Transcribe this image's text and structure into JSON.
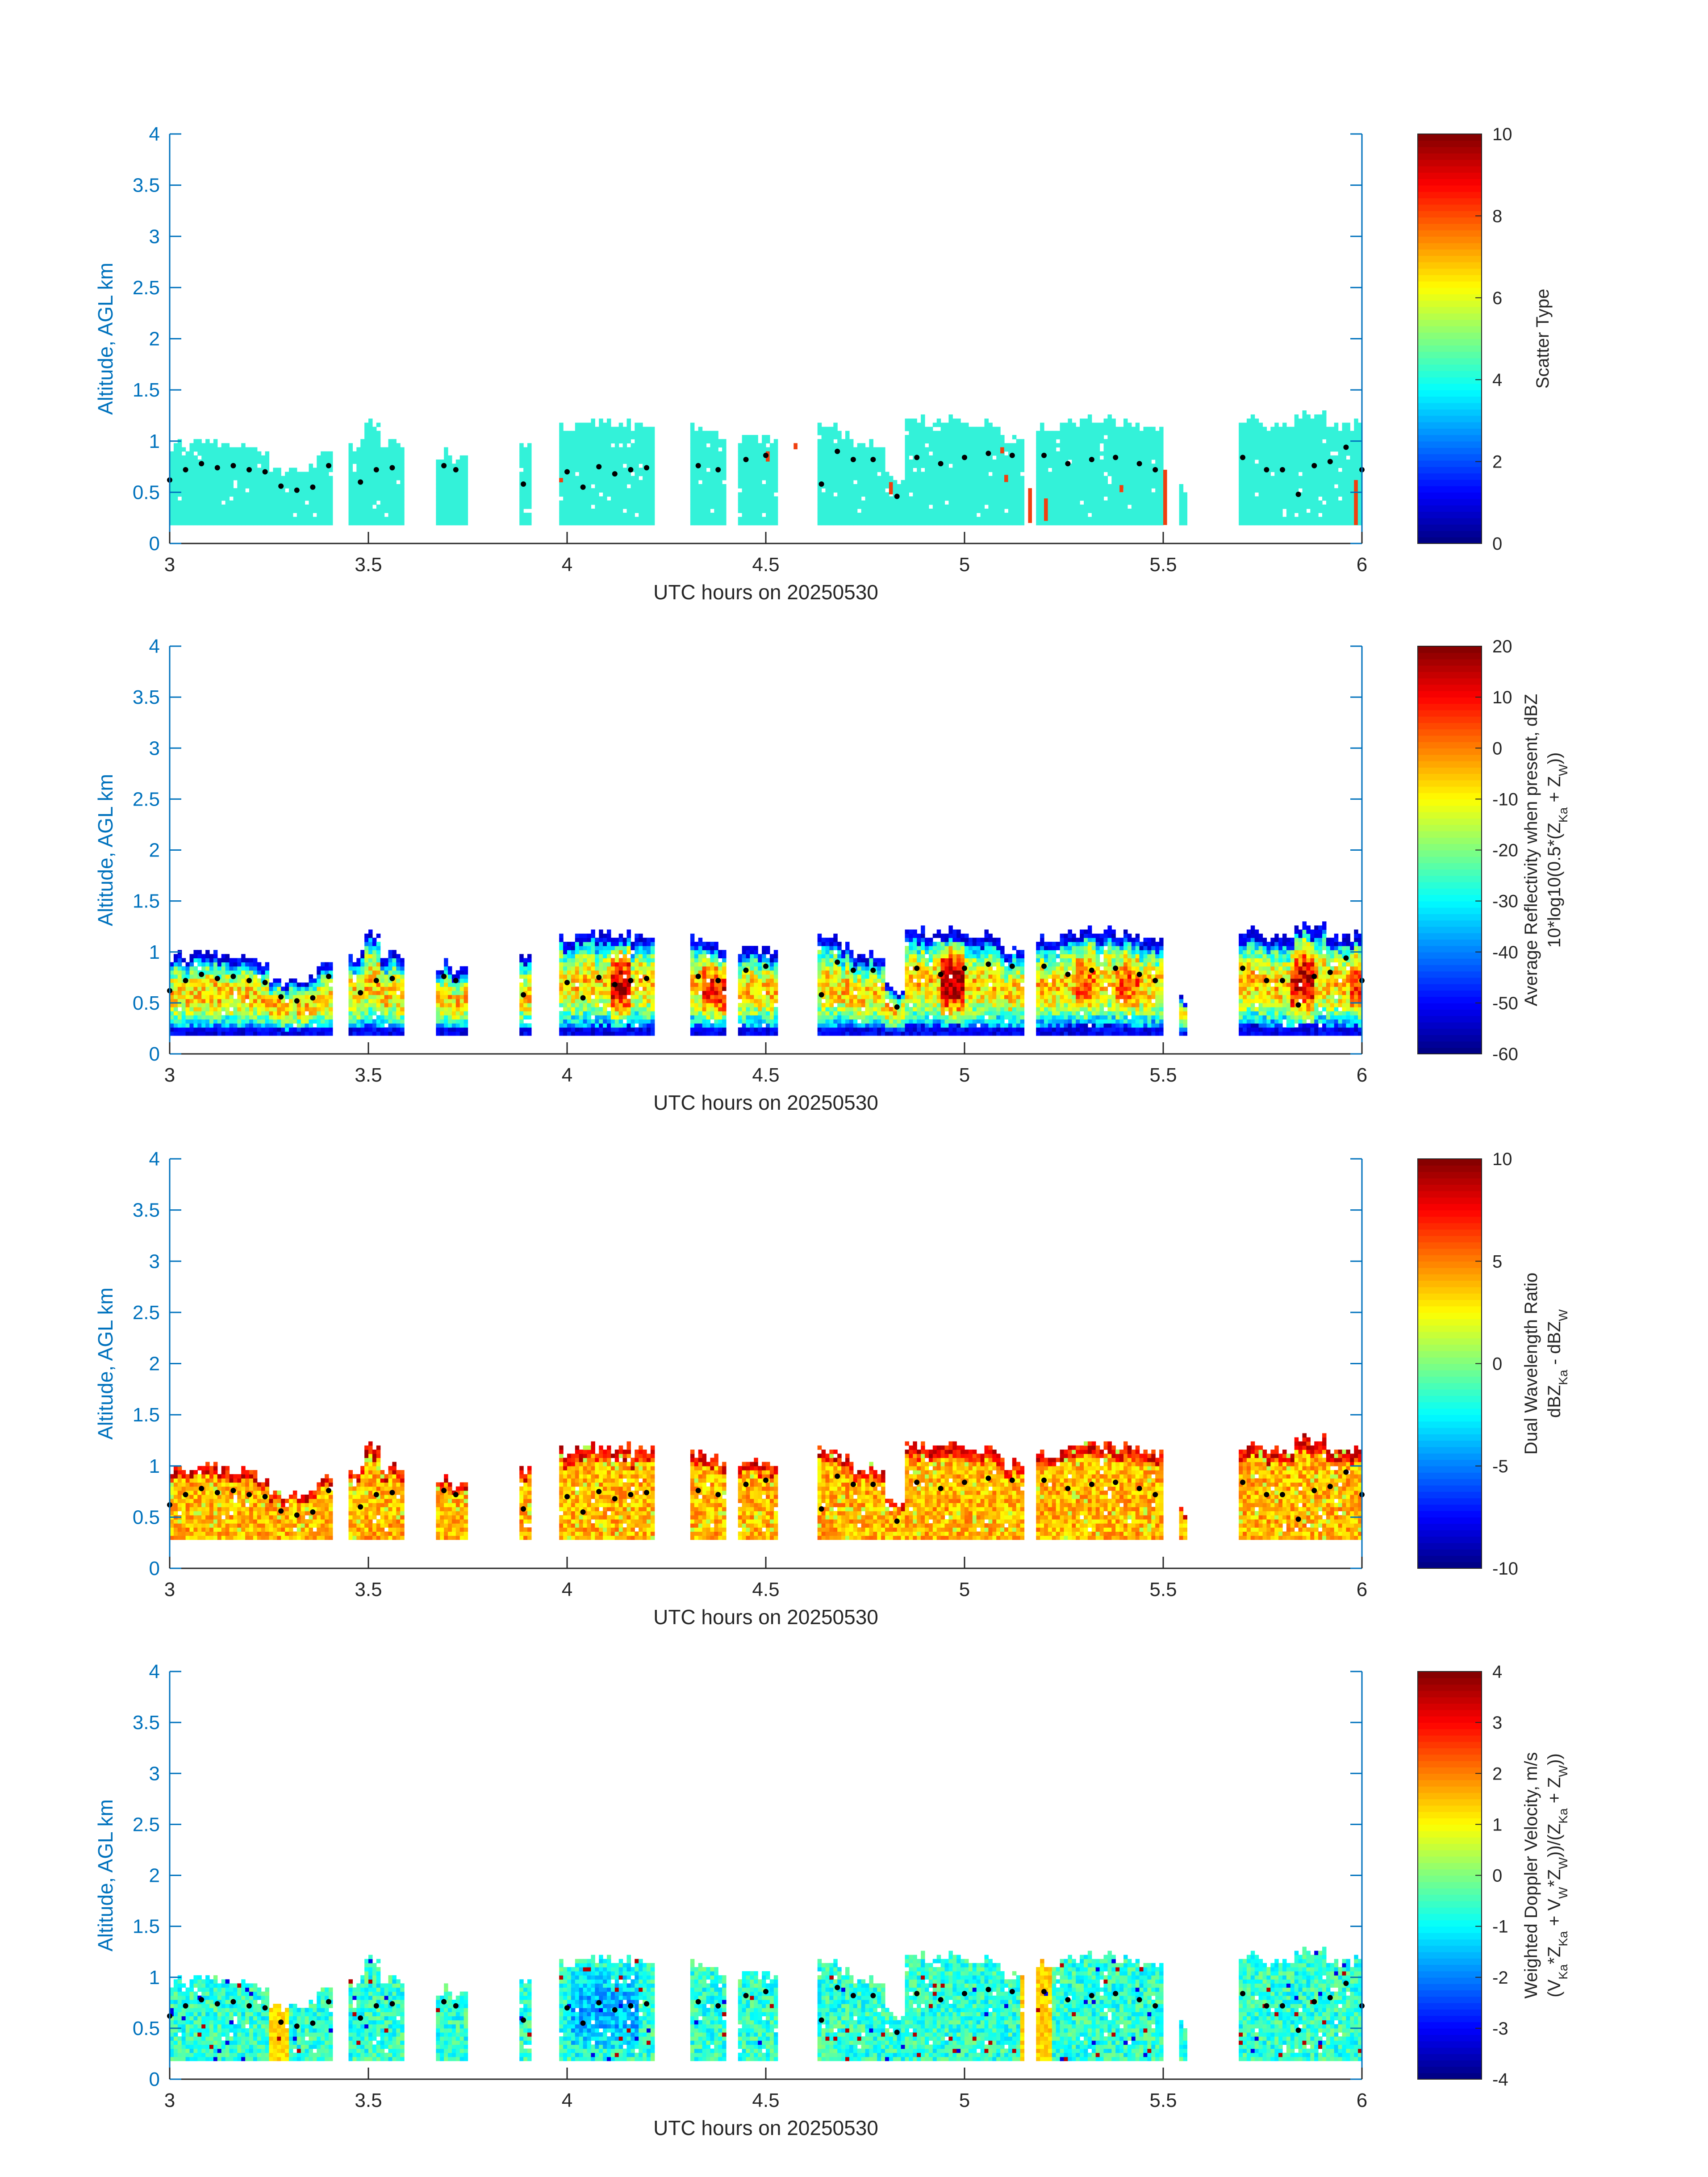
{
  "colors": {
    "axis": "#0072bd",
    "text": "#262626",
    "cloud_cyan": "#33f2d9",
    "anomaly_red": "#f04010",
    "marker": "#000000"
  },
  "colormap": "jet",
  "chart_data": [
    {
      "id": "scatter",
      "type": "heatmap",
      "title": "",
      "xlabel": "UTC hours on 20250530",
      "ylabel": "Altitude, AGL km",
      "xlim": [
        3,
        6
      ],
      "ylim": [
        0,
        4
      ],
      "xticks": [
        "3",
        "3.5",
        "4",
        "4.5",
        "5",
        "5.5",
        "6"
      ],
      "yticks": [
        "0",
        "0.5",
        "1",
        "1.5",
        "2",
        "2.5",
        "3",
        "3.5",
        "4"
      ],
      "colorbar": {
        "label_lines": [
          "Scatter Type"
        ],
        "range": [
          0,
          10
        ],
        "ticks": [
          "0",
          "2",
          "4",
          "6",
          "8",
          "10"
        ]
      }
    },
    {
      "id": "reflectivity",
      "type": "heatmap",
      "title": "",
      "xlabel": "UTC hours on 20250530",
      "ylabel": "Altitude, AGL km",
      "xlim": [
        3,
        6
      ],
      "ylim": [
        0,
        4
      ],
      "xticks": [
        "3",
        "3.5",
        "4",
        "4.5",
        "5",
        "5.5",
        "6"
      ],
      "yticks": [
        "0",
        "0.5",
        "1",
        "1.5",
        "2",
        "2.5",
        "3",
        "3.5",
        "4"
      ],
      "colorbar": {
        "label_lines": [
          "Average Reflectivity when present, dBZ",
          "10*log10(0.5*(Z_Ka + Z_W))"
        ],
        "range": [
          -60,
          20
        ],
        "ticks": [
          "-60",
          "-50",
          "-40",
          "-30",
          "-20",
          "-10",
          "0",
          "10",
          "20"
        ]
      }
    },
    {
      "id": "dwr",
      "type": "heatmap",
      "title": "",
      "xlabel": "UTC hours on 20250530",
      "ylabel": "Altitude, AGL km",
      "xlim": [
        3,
        6
      ],
      "ylim": [
        0,
        4
      ],
      "xticks": [
        "3",
        "3.5",
        "4",
        "4.5",
        "5",
        "5.5",
        "6"
      ],
      "yticks": [
        "0",
        "0.5",
        "1",
        "1.5",
        "2",
        "2.5",
        "3",
        "3.5",
        "4"
      ],
      "colorbar": {
        "label_lines": [
          "Dual Wavelength Ratio",
          "dBZ_Ka - dBZ_W"
        ],
        "range": [
          -10,
          10
        ],
        "ticks": [
          "-10",
          "-5",
          "0",
          "5",
          "10"
        ]
      }
    },
    {
      "id": "velocity",
      "type": "heatmap",
      "title": "",
      "xlabel": "UTC hours on 20250530",
      "ylabel": "Altitude, AGL km",
      "xlim": [
        3,
        6
      ],
      "ylim": [
        0,
        4
      ],
      "xticks": [
        "3",
        "3.5",
        "4",
        "4.5",
        "5",
        "5.5",
        "6"
      ],
      "yticks": [
        "0",
        "0.5",
        "1",
        "1.5",
        "2",
        "2.5",
        "3",
        "3.5",
        "4"
      ],
      "colorbar": {
        "label_lines": [
          "Weighted Doppler Velocity, m/s",
          "(V_Ka*Z_Ka + V_W*Z_W))/(Z_Ka + Z_W))"
        ],
        "range": [
          -4,
          4
        ],
        "ticks": [
          "-4",
          "-3",
          "-2",
          "-1",
          "0",
          "1",
          "2",
          "3",
          "4"
        ]
      }
    }
  ],
  "cloud_data": {
    "time_step_h": 0.01,
    "height_step_km": 0.04,
    "base_km": 0.18,
    "segments": [
      {
        "t": [
          3.0,
          3.06
        ],
        "top": 0.95
      },
      {
        "t": [
          3.06,
          3.14
        ],
        "top": 0.95
      },
      {
        "t": [
          3.14,
          3.2
        ],
        "top": 0.92
      },
      {
        "t": [
          3.2,
          3.25
        ],
        "top": 0.88
      },
      {
        "t": [
          3.25,
          3.31
        ],
        "top": 0.68
      },
      {
        "t": [
          3.31,
          3.37
        ],
        "top": 0.72
      },
      {
        "t": [
          3.37,
          3.41
        ],
        "top": 0.88
      },
      {
        "t": [
          3.45,
          3.49
        ],
        "top": 0.95
      },
      {
        "t": [
          3.49,
          3.53
        ],
        "top": 1.18
      },
      {
        "t": [
          3.53,
          3.59
        ],
        "top": 0.95
      },
      {
        "t": [
          3.67,
          3.71
        ],
        "top": 0.85
      },
      {
        "t": [
          3.71,
          3.75
        ],
        "top": 0.78
      },
      {
        "t": [
          3.88,
          3.91
        ],
        "top": 0.95
      },
      {
        "t": [
          3.98,
          4.03
        ],
        "top": 1.12
      },
      {
        "t": [
          4.03,
          4.11
        ],
        "top": 1.16
      },
      {
        "t": [
          4.11,
          4.16
        ],
        "top": 1.16
      },
      {
        "t": [
          4.16,
          4.22
        ],
        "top": 1.12
      },
      {
        "t": [
          4.31,
          4.35
        ],
        "top": 1.12
      },
      {
        "t": [
          4.35,
          4.4
        ],
        "top": 1.06
      },
      {
        "t": [
          4.43,
          4.48
        ],
        "top": 1.02
      },
      {
        "t": [
          4.48,
          4.53
        ],
        "top": 0.98
      },
      {
        "t": [
          4.63,
          4.68
        ],
        "top": 1.12
      },
      {
        "t": [
          4.68,
          4.72
        ],
        "top": 1.05
      },
      {
        "t": [
          4.72,
          4.76
        ],
        "top": 0.9
      },
      {
        "t": [
          4.76,
          4.8
        ],
        "top": 0.95
      },
      {
        "t": [
          4.8,
          4.85
        ],
        "top": 0.62
      },
      {
        "t": [
          4.85,
          4.93
        ],
        "top": 1.18
      },
      {
        "t": [
          4.93,
          5.01
        ],
        "top": 1.18
      },
      {
        "t": [
          5.01,
          5.09
        ],
        "top": 1.15
      },
      {
        "t": [
          5.09,
          5.15
        ],
        "top": 1.0
      },
      {
        "t": [
          5.18,
          5.25
        ],
        "top": 1.12
      },
      {
        "t": [
          5.25,
          5.33
        ],
        "top": 1.18
      },
      {
        "t": [
          5.33,
          5.42
        ],
        "top": 1.18
      },
      {
        "t": [
          5.42,
          5.5
        ],
        "top": 1.12
      },
      {
        "t": [
          5.54,
          5.56
        ],
        "top": 0.52
      },
      {
        "t": [
          5.69,
          5.75
        ],
        "top": 1.18
      },
      {
        "t": [
          5.75,
          5.83
        ],
        "top": 1.15
      },
      {
        "t": [
          5.83,
          5.91
        ],
        "top": 1.25
      },
      {
        "t": [
          5.91,
          6.0
        ],
        "top": 1.15
      }
    ],
    "marker_track": [
      [
        3.0,
        0.62
      ],
      [
        3.04,
        0.72
      ],
      [
        3.08,
        0.78
      ],
      [
        3.12,
        0.74
      ],
      [
        3.16,
        0.76
      ],
      [
        3.2,
        0.72
      ],
      [
        3.24,
        0.7
      ],
      [
        3.28,
        0.56
      ],
      [
        3.32,
        0.52
      ],
      [
        3.36,
        0.55
      ],
      [
        3.4,
        0.76
      ],
      [
        3.48,
        0.6
      ],
      [
        3.52,
        0.72
      ],
      [
        3.56,
        0.74
      ],
      [
        3.69,
        0.76
      ],
      [
        3.72,
        0.72
      ],
      [
        3.89,
        0.58
      ],
      [
        4.0,
        0.7
      ],
      [
        4.04,
        0.55
      ],
      [
        4.08,
        0.75
      ],
      [
        4.12,
        0.68
      ],
      [
        4.16,
        0.72
      ],
      [
        4.2,
        0.74
      ],
      [
        4.33,
        0.76
      ],
      [
        4.38,
        0.72
      ],
      [
        4.45,
        0.82
      ],
      [
        4.5,
        0.86
      ],
      [
        4.64,
        0.58
      ],
      [
        4.68,
        0.9
      ],
      [
        4.72,
        0.82
      ],
      [
        4.77,
        0.82
      ],
      [
        4.83,
        0.46
      ],
      [
        4.88,
        0.84
      ],
      [
        4.94,
        0.78
      ],
      [
        5.0,
        0.84
      ],
      [
        5.06,
        0.88
      ],
      [
        5.12,
        0.86
      ],
      [
        5.2,
        0.86
      ],
      [
        5.26,
        0.78
      ],
      [
        5.32,
        0.82
      ],
      [
        5.38,
        0.84
      ],
      [
        5.44,
        0.78
      ],
      [
        5.48,
        0.72
      ],
      [
        5.7,
        0.84
      ],
      [
        5.76,
        0.72
      ],
      [
        5.8,
        0.72
      ],
      [
        5.84,
        0.48
      ],
      [
        5.88,
        0.76
      ],
      [
        5.92,
        0.8
      ],
      [
        5.96,
        0.94
      ],
      [
        6.0,
        0.72
      ]
    ],
    "scatter_anomalies": [
      [
        3.98,
        0.62,
        0.6
      ],
      [
        4.5,
        0.8,
        0.88
      ],
      [
        4.57,
        0.92,
        0.96
      ],
      [
        4.81,
        0.58,
        0.48
      ],
      [
        5.09,
        0.88,
        0.92
      ],
      [
        5.1,
        0.65,
        0.6
      ],
      [
        5.16,
        0.52,
        0.2
      ],
      [
        5.2,
        0.42,
        0.22
      ],
      [
        5.39,
        0.55,
        0.5
      ],
      [
        5.5,
        0.7,
        0.18
      ],
      [
        5.98,
        0.6,
        0.18
      ]
    ]
  }
}
